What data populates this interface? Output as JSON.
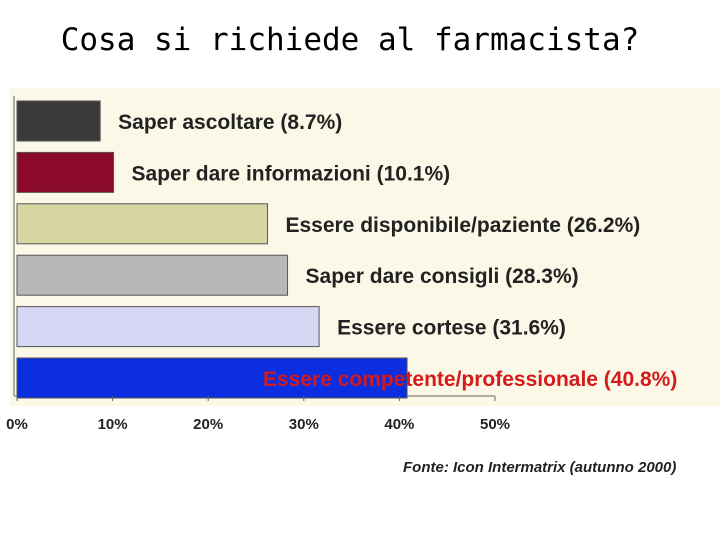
{
  "slide": {
    "title": "Cosa si richiede al farmacista?"
  },
  "chart_data": {
    "type": "bar",
    "orientation": "horizontal",
    "categories": [
      "Saper ascoltare (8.7%)",
      "Saper dare informazioni (10.1%)",
      "Essere disponibile/paziente (26.2%)",
      "Saper dare consigli (28.3%)",
      "Essere cortese (31.6%)",
      "Essere competente/professionale (40.8%)"
    ],
    "values": [
      8.7,
      10.1,
      26.2,
      28.3,
      31.6,
      40.8
    ],
    "colors": [
      "#3a3a3a",
      "#8b0a2a",
      "#d9d6a3",
      "#b8b8b8",
      "#d6d6f5",
      "#0a2ee0"
    ],
    "label_colors": [
      "#222222",
      "#222222",
      "#222222",
      "#222222",
      "#222222",
      "#d41a1a"
    ],
    "xlim": [
      0,
      50
    ],
    "x_ticks": [
      "0%",
      "10%",
      "20%",
      "30%",
      "40%",
      "50%"
    ],
    "x_tick_values": [
      0,
      10,
      20,
      30,
      40,
      50
    ],
    "plot_background": "#fbf8e8",
    "grid": false,
    "source": "Fonte: Icon Intermatrix (autunno 2000)"
  }
}
